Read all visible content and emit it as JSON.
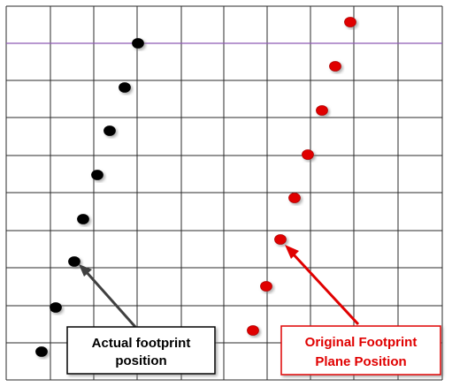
{
  "diagram": {
    "colors": {
      "grid": "#2b2b2b",
      "highlight_line": "#8e5bb5",
      "actual_dot": "#000000",
      "original_dot": "#e00000",
      "actual_arrow": "#404040",
      "original_arrow": "#e00000",
      "original_label_text": "#e00000",
      "actual_label_text": "#000000"
    },
    "labels": {
      "actual_line1": "Actual footprint",
      "actual_line2": "position",
      "original_line1": "Original Footprint",
      "original_line2": "Plane Position"
    }
  }
}
